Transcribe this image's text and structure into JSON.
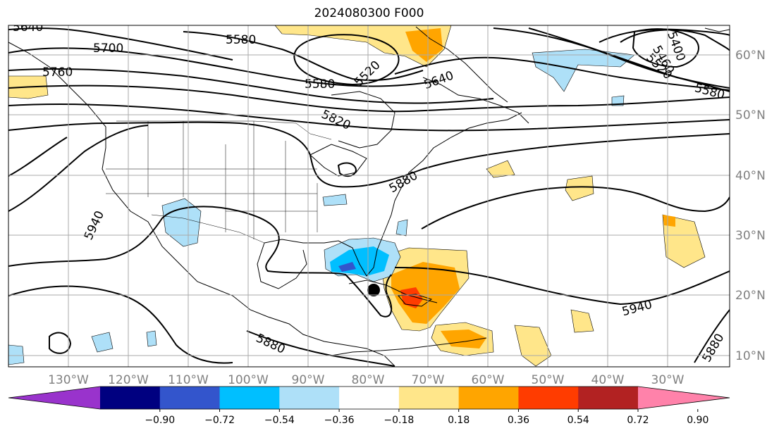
{
  "title": "2024080300 F000",
  "longitude_labels": [
    "130°W",
    "120°W",
    "110°W",
    "100°W",
    "90°W",
    "80°W",
    "70°W",
    "60°W",
    "50°W",
    "40°W",
    "30°W"
  ],
  "latitude_labels": [
    "60°N",
    "50°N",
    "40°N",
    "30°N",
    "20°N",
    "10°N"
  ],
  "contour_labels": [
    "5640",
    "5700",
    "5760",
    "5580",
    "5520",
    "5580",
    "5640",
    "5400",
    "5460",
    "5520",
    "5580",
    "5820",
    "5880",
    "5940",
    "5880",
    "5940",
    "5880"
  ],
  "colorbar": {
    "tick_labels": [
      "−0.90",
      "−0.72",
      "−0.54",
      "−0.36",
      "−0.18",
      "0.18",
      "0.36",
      "0.54",
      "0.72",
      "0.90"
    ],
    "colors": [
      "#9933cc",
      "#000080",
      "#3355cc",
      "#00bfff",
      "#aee0f8",
      "#ffffff",
      "#ffe68a",
      "#ffa500",
      "#ff3c00",
      "#b22222",
      "#ff82aa"
    ]
  },
  "colors": {
    "grid": "#aaaaaa",
    "coast": "#000000",
    "contour": "#000000",
    "storm_marker": "#000000"
  }
}
